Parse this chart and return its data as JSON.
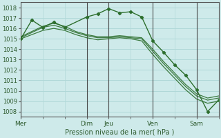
{
  "xlabel": "Pression niveau de la mer( hPa )",
  "background_color": "#ceeaea",
  "plot_bg_color": "#ceeaea",
  "grid_color": "#b0d8d8",
  "line_color": "#2d6e2d",
  "marker_color": "#2d6e2d",
  "ylim": [
    1007.5,
    1018.5
  ],
  "yticks": [
    1008,
    1009,
    1010,
    1011,
    1012,
    1013,
    1014,
    1015,
    1016,
    1017,
    1018
  ],
  "xlim": [
    0,
    54
  ],
  "x_day_labels": [
    "Mer",
    "Dim",
    "Jeu",
    "Ven",
    "Sam"
  ],
  "x_day_positions": [
    0,
    18,
    24,
    36,
    48
  ],
  "lines_no_marker": [
    {
      "x": [
        0,
        3,
        6,
        9,
        12,
        15,
        18,
        21,
        24,
        27,
        30,
        33,
        36,
        39,
        42,
        45,
        48,
        51,
        54
      ],
      "y": [
        1015.0,
        1015.4,
        1015.8,
        1016.0,
        1015.8,
        1015.4,
        1015.1,
        1014.9,
        1015.0,
        1015.1,
        1015.0,
        1014.8,
        1013.5,
        1012.3,
        1011.2,
        1010.1,
        1009.2,
        1008.8,
        1009.0
      ]
    },
    {
      "x": [
        0,
        3,
        6,
        9,
        12,
        15,
        18,
        21,
        24,
        27,
        30,
        33,
        36,
        39,
        42,
        45,
        48,
        51,
        54
      ],
      "y": [
        1015.1,
        1015.6,
        1016.1,
        1016.3,
        1016.0,
        1015.6,
        1015.3,
        1015.1,
        1015.1,
        1015.2,
        1015.1,
        1015.0,
        1013.8,
        1012.6,
        1011.5,
        1010.4,
        1009.5,
        1009.1,
        1009.3
      ]
    },
    {
      "x": [
        0,
        3,
        6,
        9,
        12,
        15,
        18,
        21,
        24,
        27,
        30,
        33,
        36,
        39,
        42,
        45,
        48,
        51,
        54
      ],
      "y": [
        1015.2,
        1015.7,
        1016.2,
        1016.5,
        1016.2,
        1015.7,
        1015.4,
        1015.2,
        1015.2,
        1015.3,
        1015.2,
        1015.1,
        1014.0,
        1012.8,
        1011.7,
        1010.6,
        1009.7,
        1009.3,
        1009.5
      ]
    }
  ],
  "line_with_markers": {
    "x": [
      0,
      3,
      6,
      9,
      12,
      18,
      21,
      24,
      27,
      30,
      33,
      36,
      39,
      42,
      45,
      48,
      51,
      54
    ],
    "y": [
      1015.0,
      1016.8,
      1016.1,
      1016.6,
      1016.1,
      1017.1,
      1017.4,
      1017.9,
      1017.5,
      1017.6,
      1017.1,
      1014.8,
      1013.7,
      1012.5,
      1011.5,
      1010.1,
      1008.0,
      1009.1
    ]
  }
}
